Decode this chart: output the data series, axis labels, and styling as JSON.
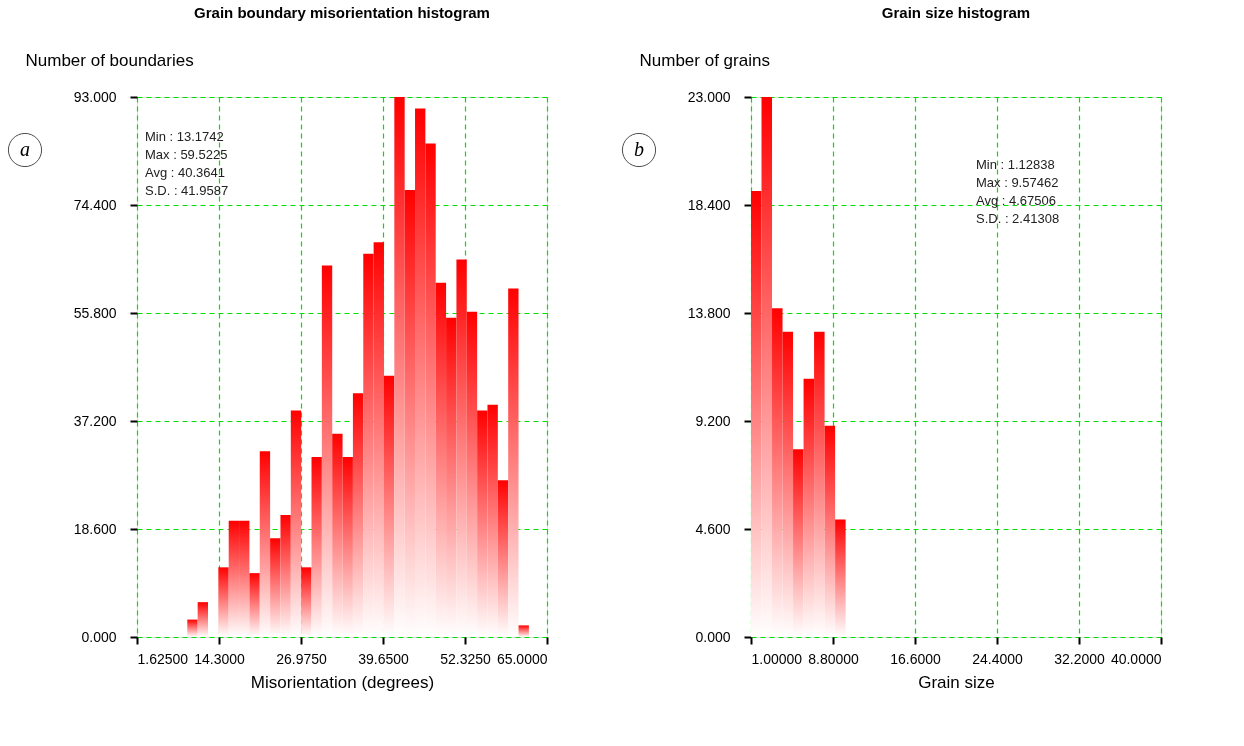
{
  "chart_data": [
    {
      "type": "histogram",
      "title": "Grain boundary misorientation histogram",
      "xlabel": "Misorientation (degrees)",
      "ylabel": "Number of boundaries",
      "bins": [
        9.4,
        11.0,
        12.6,
        14.2,
        15.8,
        17.4,
        19.0,
        20.6,
        22.2,
        23.8,
        25.4,
        27.0,
        28.6,
        30.2,
        31.8,
        33.4,
        35.0,
        36.6,
        38.2,
        39.8,
        41.4,
        43.0,
        44.6,
        46.2,
        47.8,
        49.4,
        51.0,
        52.6,
        54.2,
        55.8,
        57.4,
        59.0,
        60.6,
        62.2
      ],
      "values": [
        3,
        6,
        0,
        12,
        20,
        20,
        11,
        32,
        17,
        21,
        39,
        12,
        31,
        64,
        35,
        31,
        42,
        66,
        68,
        45,
        93,
        77,
        91,
        85,
        61,
        55,
        65,
        56,
        39,
        40,
        27,
        60,
        2
      ],
      "color": "#ff0000",
      "xlim": [
        1.625,
        65.0
      ],
      "xticks": [
        {
          "value": 1.625,
          "label": "1.62500"
        },
        {
          "value": 14.3,
          "label": "14.3000"
        },
        {
          "value": 26.975,
          "label": "26.9750"
        },
        {
          "value": 39.65,
          "label": "39.6500"
        },
        {
          "value": 52.325,
          "label": "52.3250"
        },
        {
          "value": 65.0,
          "label": "65.0000"
        }
      ],
      "ylim": [
        0,
        93
      ],
      "yticks": [
        {
          "value": 0,
          "label": "0.000"
        },
        {
          "value": 18.6,
          "label": "18.600"
        },
        {
          "value": 37.2,
          "label": "37.200"
        },
        {
          "value": 55.8,
          "label": "55.800"
        },
        {
          "value": 74.4,
          "label": "74.400"
        },
        {
          "value": 93,
          "label": "93.000"
        }
      ],
      "grid": true,
      "annotations": [
        "a",
        "Min : 13.1742",
        "Max : 59.5225",
        "Avg : 40.3641",
        "S.D. : 41.9587"
      ]
    },
    {
      "type": "histogram",
      "title": "Grain size histogram",
      "xlabel": "Grain size",
      "ylabel": "Number of grains",
      "bins": [
        1,
        2,
        3,
        4,
        5,
        6,
        7,
        8,
        9,
        10
      ],
      "values": [
        19,
        23,
        14,
        13,
        8,
        11,
        13,
        9,
        5
      ],
      "color": "#ff0000",
      "xlim": [
        1.0,
        40.0
      ],
      "xticks": [
        {
          "value": 1.0,
          "label": "1.00000"
        },
        {
          "value": 8.8,
          "label": "8.80000"
        },
        {
          "value": 16.6,
          "label": "16.6000"
        },
        {
          "value": 24.4,
          "label": "24.4000"
        },
        {
          "value": 32.2,
          "label": "32.2000"
        },
        {
          "value": 40.0,
          "label": "40.0000"
        }
      ],
      "ylim": [
        0,
        23
      ],
      "yticks": [
        {
          "value": 0,
          "label": "0.000"
        },
        {
          "value": 4.6,
          "label": "4.600"
        },
        {
          "value": 9.2,
          "label": "9.200"
        },
        {
          "value": 13.8,
          "label": "13.800"
        },
        {
          "value": 18.4,
          "label": "18.400"
        },
        {
          "value": 23,
          "label": "23.000"
        }
      ],
      "grid": true,
      "annotations": [
        "b",
        "Min : 1.12838",
        "Max : 9.57462",
        "Avg : 4.67506",
        "S.D. : 2.41308"
      ]
    }
  ]
}
